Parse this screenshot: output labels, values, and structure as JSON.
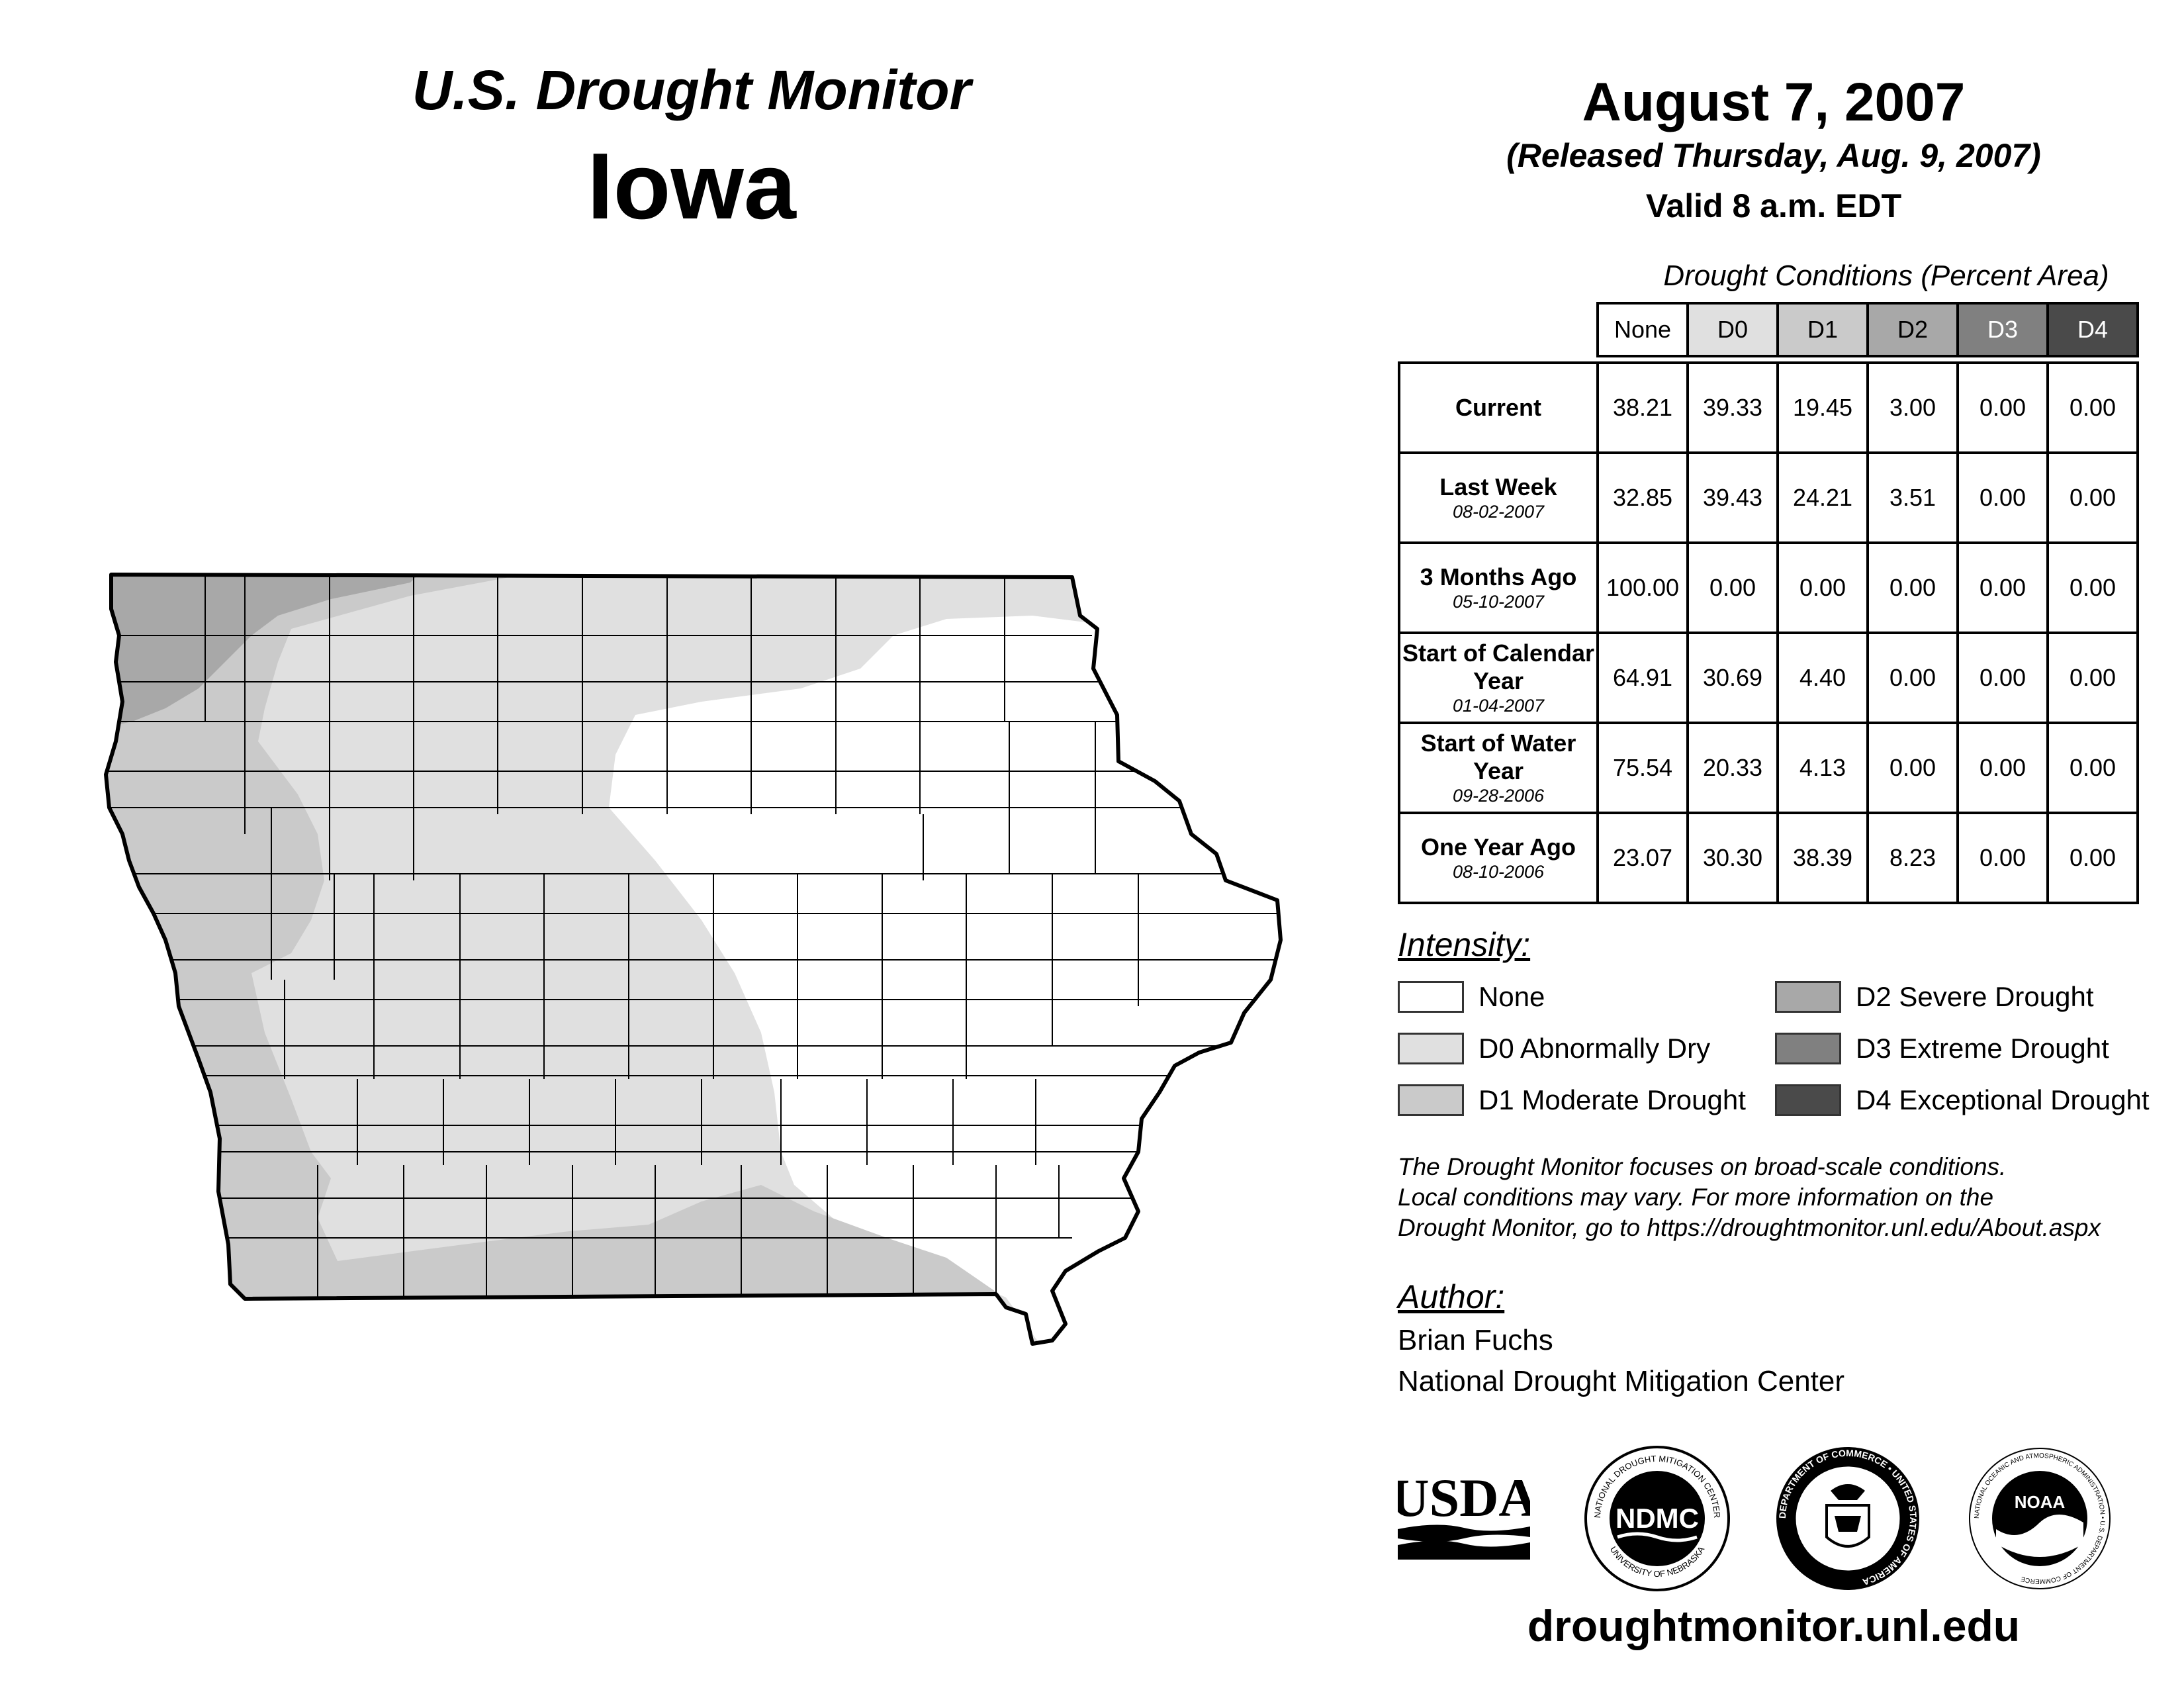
{
  "header": {
    "subtitle": "U.S. Drought Monitor",
    "state": "Iowa"
  },
  "dates": {
    "map_date": "August 7, 2007",
    "released": "(Released Thursday, Aug. 9, 2007)",
    "valid": "Valid 8 a.m. EDT"
  },
  "table": {
    "caption": "Drought Conditions (Percent Area)",
    "columns": [
      "None",
      "D0",
      "D1",
      "D2",
      "D3",
      "D4"
    ],
    "rows": [
      {
        "label": "Current",
        "date": "",
        "values": [
          "38.21",
          "39.33",
          "19.45",
          "3.00",
          "0.00",
          "0.00"
        ]
      },
      {
        "label": "Last Week",
        "date": "08-02-2007",
        "values": [
          "32.85",
          "39.43",
          "24.21",
          "3.51",
          "0.00",
          "0.00"
        ]
      },
      {
        "label": "3 Months Ago",
        "date": "05-10-2007",
        "values": [
          "100.00",
          "0.00",
          "0.00",
          "0.00",
          "0.00",
          "0.00"
        ]
      },
      {
        "label": "Start of Calendar Year",
        "date": "01-04-2007",
        "values": [
          "64.91",
          "30.69",
          "4.40",
          "0.00",
          "0.00",
          "0.00"
        ]
      },
      {
        "label": "Start of Water Year",
        "date": "09-28-2006",
        "values": [
          "75.54",
          "20.33",
          "4.13",
          "0.00",
          "0.00",
          "0.00"
        ]
      },
      {
        "label": "One Year Ago",
        "date": "08-10-2006",
        "values": [
          "23.07",
          "30.30",
          "38.39",
          "8.23",
          "0.00",
          "0.00"
        ]
      }
    ]
  },
  "legend": {
    "heading": "Intensity:",
    "items": [
      {
        "label": "None",
        "color": "#ffffff"
      },
      {
        "label": "D0 Abnormally Dry",
        "color": "#e0e0e0"
      },
      {
        "label": "D1 Moderate Drought",
        "color": "#cacaca"
      },
      {
        "label": "D2 Severe Drought",
        "color": "#a8a8a8"
      },
      {
        "label": "D3 Extreme Drought",
        "color": "#808080"
      },
      {
        "label": "D4 Exceptional Drought",
        "color": "#4a4a4a"
      }
    ]
  },
  "note": {
    "line1": "The Drought Monitor focuses on broad-scale conditions.",
    "line2": "Local conditions may vary. For more information on the",
    "line3": "Drought Monitor, go to https://droughtmonitor.unl.edu/About.aspx"
  },
  "author": {
    "heading": "Author:",
    "name": "Brian Fuchs",
    "org": "National Drought Mitigation Center"
  },
  "logos": {
    "usda": "USDA",
    "ndmc": "NDMC",
    "ndmc_ring_top": "NATIONAL DROUGHT MITIGATION CENTER",
    "ndmc_ring_bottom": "UNIVERSITY OF NEBRASKA",
    "doc_ring": "DEPARTMENT OF COMMERCE • UNITED STATES OF AMERICA",
    "noaa": "NOAA",
    "noaa_ring": "NATIONAL OCEANIC AND ATMOSPHERIC ADMINISTRATION • U.S. DEPARTMENT OF COMMERCE"
  },
  "footer": {
    "url": "droughtmonitor.unl.edu"
  },
  "map_colors": {
    "none": "#ffffff",
    "d0": "#e0e0e0",
    "d1": "#cacaca",
    "d2": "#a8a8a8",
    "outline": "#000000"
  }
}
